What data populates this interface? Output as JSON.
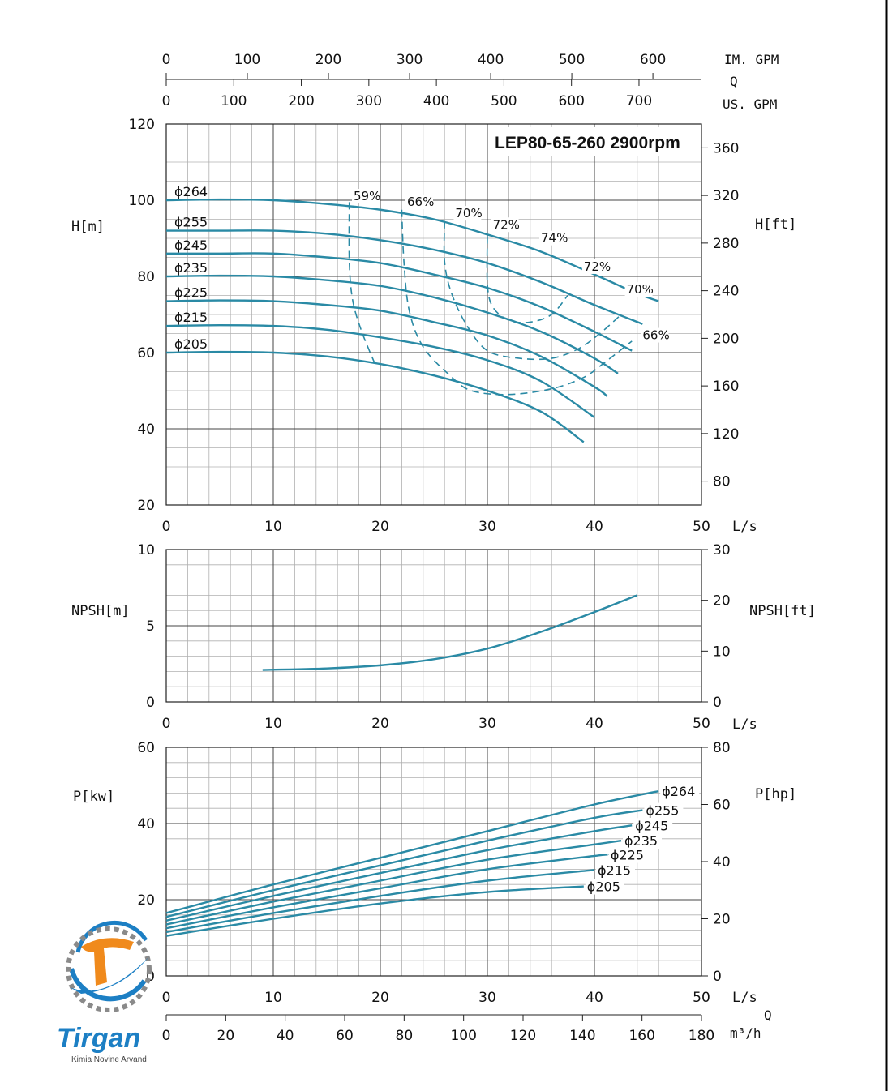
{
  "colors": {
    "curve": "#2a8aa5",
    "axis": "#222222",
    "grid_major": "#444444",
    "grid_minor": "#b0b0b0",
    "logo_blue": "#1c7fc4",
    "logo_orange": "#f08a1c",
    "logo_gray": "#7a7a7a"
  },
  "logo": {
    "name": "Tirgan",
    "subtitle": "Kimia Novine Arvand"
  },
  "edge_line": "#000000",
  "flow_scales": {
    "label": "Q",
    "im_gpm": {
      "unit": "IM. GPM",
      "ticks": [
        "0",
        "100",
        "200",
        "300",
        "400",
        "500",
        "600"
      ]
    },
    "us_gpm": {
      "unit": "US. GPM",
      "ticks": [
        "0",
        "100",
        "200",
        "300",
        "400",
        "500",
        "600",
        "700"
      ]
    },
    "m3h": {
      "unit": "m³/h",
      "label": "Q",
      "ticks": [
        "0",
        "20",
        "40",
        "60",
        "80",
        "100",
        "120",
        "140",
        "160",
        "180"
      ]
    }
  },
  "chart_data": [
    {
      "type": "line",
      "id": "head",
      "title": "LEP80-65-260 2900rpm",
      "xlabel": "L/s",
      "ylabel": "H[m]",
      "ylabel_right": "H[ft]",
      "xlim": [
        0,
        50
      ],
      "ylim": [
        20,
        120
      ],
      "xticks": [
        "0",
        "10",
        "20",
        "30",
        "40",
        "50"
      ],
      "yticks": [
        "20",
        "40",
        "60",
        "80",
        "100",
        "120"
      ],
      "yticks_right": [
        "80",
        "120",
        "160",
        "200",
        "240",
        "280",
        "320",
        "360"
      ],
      "grid": true,
      "series": [
        {
          "name": "ϕ264",
          "x": [
            0,
            5,
            10,
            15,
            20,
            25,
            30,
            35,
            40,
            44,
            46
          ],
          "y": [
            100,
            100.2,
            100,
            99,
            97.5,
            95,
            91,
            86.5,
            80.5,
            75.5,
            73.5
          ]
        },
        {
          "name": "ϕ255",
          "x": [
            0,
            5,
            10,
            15,
            20,
            25,
            30,
            35,
            40,
            44.5
          ],
          "y": [
            92,
            92,
            92,
            91.2,
            89.5,
            87,
            83.5,
            78.5,
            72.5,
            67.5
          ]
        },
        {
          "name": "ϕ245",
          "x": [
            0,
            5,
            10,
            15,
            20,
            25,
            30,
            35,
            40,
            43.5
          ],
          "y": [
            86,
            86,
            86,
            85,
            83.5,
            80.5,
            77,
            72,
            65.5,
            60.5
          ]
        },
        {
          "name": "ϕ235",
          "x": [
            0,
            5,
            10,
            15,
            20,
            25,
            30,
            35,
            40,
            42.2
          ],
          "y": [
            80,
            80.2,
            80,
            79,
            77.5,
            74.5,
            70.5,
            65.5,
            58.5,
            54.5
          ]
        },
        {
          "name": "ϕ225",
          "x": [
            0,
            5,
            10,
            15,
            20,
            25,
            30,
            35,
            40,
            41.2
          ],
          "y": [
            73.5,
            73.7,
            73.5,
            72.5,
            71,
            68,
            64.5,
            59,
            51,
            48.5
          ]
        },
        {
          "name": "ϕ215",
          "x": [
            0,
            5,
            10,
            15,
            20,
            25,
            30,
            35,
            40
          ],
          "y": [
            67,
            67.2,
            67,
            66,
            64,
            61.5,
            58,
            52.5,
            43
          ]
        },
        {
          "name": "ϕ205",
          "x": [
            0,
            5,
            10,
            15,
            20,
            25,
            30,
            35,
            39
          ],
          "y": [
            60,
            60.2,
            60,
            59,
            57,
            54,
            50,
            44.5,
            36.5
          ]
        }
      ],
      "efficiency_contours": [
        {
          "label": "59%",
          "x": [
            17.1,
            17.1,
            17.4,
            18.2,
            19.5
          ],
          "y": [
            99.5,
            84,
            74,
            66,
            57
          ]
        },
        {
          "label": "66%",
          "x": [
            22,
            22.2,
            22.7,
            24,
            26.5,
            28.5,
            32,
            36,
            39,
            41,
            43.5
          ],
          "y": [
            97.5,
            84,
            71,
            61.5,
            54,
            50,
            49,
            50.5,
            53.5,
            57.5,
            63
          ]
        },
        {
          "label": "70%",
          "x": [
            26,
            26,
            26.6,
            28,
            30,
            33,
            36,
            38.5,
            40.5,
            42.5
          ],
          "y": [
            94.5,
            84,
            76,
            67.5,
            60.5,
            58.5,
            58.5,
            61,
            65,
            70
          ]
        },
        {
          "label": "72%",
          "x": [
            30,
            30,
            30.5,
            32,
            34,
            36,
            37.5
          ],
          "y": [
            90.5,
            78,
            72,
            68.5,
            68,
            70,
            75
          ]
        }
      ],
      "efficiency_labels": [
        {
          "text": "59%",
          "x": 17.5,
          "y": 100
        },
        {
          "text": "66%",
          "x": 22.5,
          "y": 98.5
        },
        {
          "text": "70%",
          "x": 27,
          "y": 95.5
        },
        {
          "text": "72%",
          "x": 30.5,
          "y": 92.5
        },
        {
          "text": "74%",
          "x": 35,
          "y": 89
        },
        {
          "text": "72%",
          "x": 39,
          "y": 81.5
        },
        {
          "text": "70%",
          "x": 43,
          "y": 75.5
        },
        {
          "text": "66%",
          "x": 44.5,
          "y": 63.5
        }
      ]
    },
    {
      "type": "line",
      "id": "npsh",
      "xlabel": "L/s",
      "ylabel": "NPSH[m]",
      "ylabel_right": "NPSH[ft]",
      "xlim": [
        0,
        50
      ],
      "ylim": [
        0,
        10
      ],
      "xticks": [
        "0",
        "10",
        "20",
        "30",
        "40",
        "50"
      ],
      "yticks": [
        "0",
        "5",
        "10"
      ],
      "yticks_right": [
        "0",
        "10",
        "20",
        "30"
      ],
      "grid": true,
      "series": [
        {
          "name": "",
          "x": [
            9,
            15,
            20,
            25,
            30,
            35,
            40,
            44
          ],
          "y": [
            2.1,
            2.2,
            2.4,
            2.8,
            3.5,
            4.6,
            5.9,
            7
          ]
        }
      ]
    },
    {
      "type": "line",
      "id": "power",
      "xlabel": "L/s",
      "ylabel": "P[kw]",
      "ylabel_right": "P[hp]",
      "xlim": [
        0,
        50
      ],
      "ylim": [
        0,
        60
      ],
      "xticks": [
        "0",
        "10",
        "20",
        "30",
        "40",
        "50"
      ],
      "yticks": [
        "0",
        "20",
        "40",
        "60"
      ],
      "yticks_right": [
        "0",
        "20",
        "40",
        "60",
        "80"
      ],
      "grid": true,
      "series": [
        {
          "name": "ϕ264",
          "x": [
            0,
            10,
            20,
            30,
            40,
            46
          ],
          "y": [
            16.5,
            24,
            31,
            38,
            45,
            48.5
          ]
        },
        {
          "name": "ϕ255",
          "x": [
            0,
            10,
            20,
            30,
            40,
            44.5
          ],
          "y": [
            15.5,
            22.5,
            29,
            35.5,
            41.5,
            43.5
          ]
        },
        {
          "name": "ϕ245",
          "x": [
            0,
            10,
            20,
            30,
            40,
            43.5
          ],
          "y": [
            14.5,
            21,
            27,
            33,
            38,
            39.5
          ]
        },
        {
          "name": "ϕ235",
          "x": [
            0,
            10,
            20,
            30,
            40,
            42.5
          ],
          "y": [
            13.5,
            19.5,
            25,
            30.5,
            34.5,
            35.5
          ]
        },
        {
          "name": "ϕ225",
          "x": [
            0,
            10,
            20,
            30,
            40,
            41.2
          ],
          "y": [
            12.5,
            18,
            23,
            28,
            31.5,
            31.8
          ]
        },
        {
          "name": "ϕ215",
          "x": [
            0,
            10,
            20,
            30,
            40
          ],
          "y": [
            11.5,
            16.5,
            21,
            25,
            27.8
          ]
        },
        {
          "name": "ϕ205",
          "x": [
            0,
            10,
            20,
            30,
            39
          ],
          "y": [
            10.5,
            15,
            19,
            22,
            23.5
          ]
        }
      ]
    }
  ]
}
